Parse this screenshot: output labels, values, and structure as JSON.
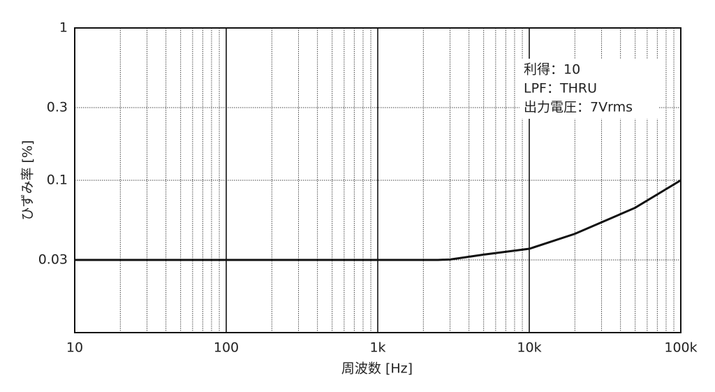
{
  "chart_data": {
    "type": "line",
    "x_label": "周波数 [Hz]",
    "y_label": "ひずみ率 [%]",
    "annotations": [
      "利得：10",
      "LPF：THRU",
      "出力電圧：7Vrms"
    ],
    "x": [
      10,
      100,
      1000,
      2500,
      3000,
      5000,
      10000,
      20000,
      50000,
      100000
    ],
    "series": [
      {
        "color": "#111111",
        "values": [
          0.03,
          0.03,
          0.03,
          0.03,
          0.0302,
          0.0325,
          0.0355,
          0.0445,
          0.066,
          0.1
        ]
      }
    ],
    "xlim": [
      10,
      100000
    ],
    "ylim": [
      0.01,
      1
    ],
    "xticks": [
      10,
      100,
      {
        "value": 1000,
        "label": "1k"
      },
      {
        "value": 10000,
        "label": "10k"
      },
      {
        "value": 100000,
        "label": "100k"
      }
    ],
    "yticks": [
      1,
      0.3,
      0.1,
      0.03
    ],
    "log_x": true,
    "log_y": true,
    "grid": true,
    "minor_grid": true
  }
}
